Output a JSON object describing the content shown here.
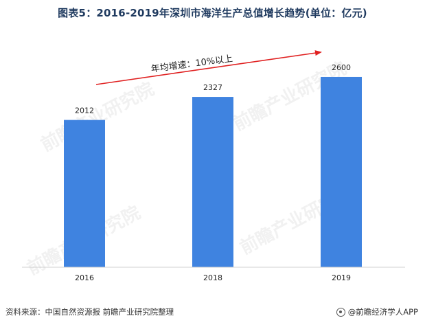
{
  "title": "图表5：2016-2019年深圳市海洋生产总值增长趋势(单位：亿元)",
  "annotation": "年均增速：10%以上",
  "source_text": "资料来源：中国自然资源报 前瞻产业研究院整理",
  "brand_text": "@前瞻经济学人APP",
  "watermark_text": "前瞻产业研究院",
  "colors": {
    "bar": "#3f83e0",
    "arrow": "#e02020",
    "title": "#1f3a5f"
  },
  "chart_data": {
    "type": "bar",
    "categories": [
      "2016",
      "2018",
      "2019"
    ],
    "values": [
      2012,
      2327,
      2600
    ],
    "title": "图表5：2016-2019年深圳市海洋生产总值增长趋势(单位：亿元)",
    "xlabel": "",
    "ylabel": "",
    "ylim": [
      0,
      2900
    ],
    "grid": false,
    "legend": "none",
    "data_labels": true
  }
}
